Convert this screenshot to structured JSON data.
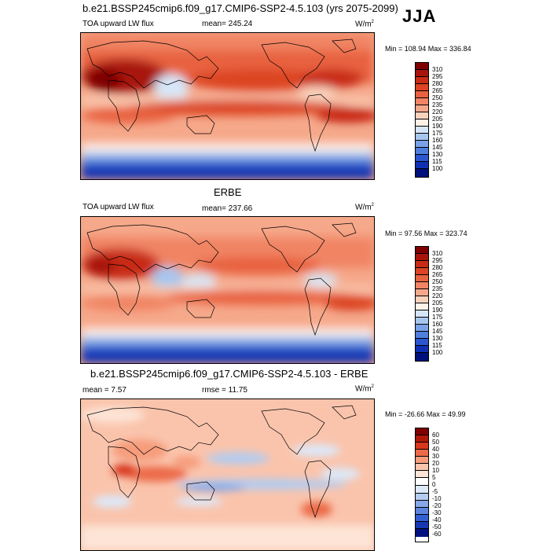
{
  "title": "b.e21.BSSP245cmip6.f09_g17.CMIP6-SSP2-4.5.103 (yrs 2075-2099)",
  "season": "JJA",
  "panels": [
    {
      "variable": "TOA upward LW flux",
      "stat1": "mean= 245.24",
      "stat2": "",
      "units": "W/m",
      "units_sup": "2",
      "minmax": "Min = 108.94 Max = 336.84",
      "cbar_labels": [
        "310",
        "295",
        "280",
        "265",
        "250",
        "235",
        "220",
        "205",
        "190",
        "175",
        "160",
        "145",
        "130",
        "115",
        "100"
      ]
    },
    {
      "panel_title": "ERBE",
      "variable": "TOA upward LW flux",
      "stat1": "mean= 237.66",
      "stat2": "",
      "units": "W/m",
      "units_sup": "2",
      "minmax": "Min =  97.56 Max = 323.74",
      "cbar_labels": [
        "310",
        "295",
        "280",
        "265",
        "250",
        "235",
        "220",
        "205",
        "190",
        "175",
        "160",
        "145",
        "130",
        "115",
        "100"
      ]
    },
    {
      "panel_title": "b.e21.BSSP245cmip6.f09_g17.CMIP6-SSP2-4.5.103 - ERBE",
      "variable": "",
      "stat1": "mean =   7.57",
      "stat2": "rmse =  11.75",
      "units": "W/m",
      "units_sup": "2",
      "minmax": "Min = -26.66 Max =  49.99",
      "cbar_labels": [
        "60",
        "50",
        "40",
        "30",
        "20",
        "10",
        "5",
        "0",
        "-5",
        "-10",
        "-20",
        "-30",
        "-40",
        "-50",
        "-60"
      ]
    }
  ],
  "colors": {
    "abs_scale": [
      "#7f0000",
      "#a8140c",
      "#c82c16",
      "#dc4423",
      "#e86240",
      "#f08464",
      "#f6a88a",
      "#fad2bc",
      "#fff2e8",
      "#d6e6f8",
      "#a6c6ee",
      "#7aa2e6",
      "#4e7ede",
      "#2a56d0",
      "#1030b4",
      "#00107a"
    ],
    "diff_scale": [
      "#7f0000",
      "#b01808",
      "#d8381c",
      "#ec6a48",
      "#f69c7c",
      "#fac4ac",
      "#fde4d6",
      "#ffffff",
      "#dde8f8",
      "#b4ccf0",
      "#86a8e8",
      "#5c84de",
      "#3460d2",
      "#1638b4",
      "#001080"
    ]
  }
}
